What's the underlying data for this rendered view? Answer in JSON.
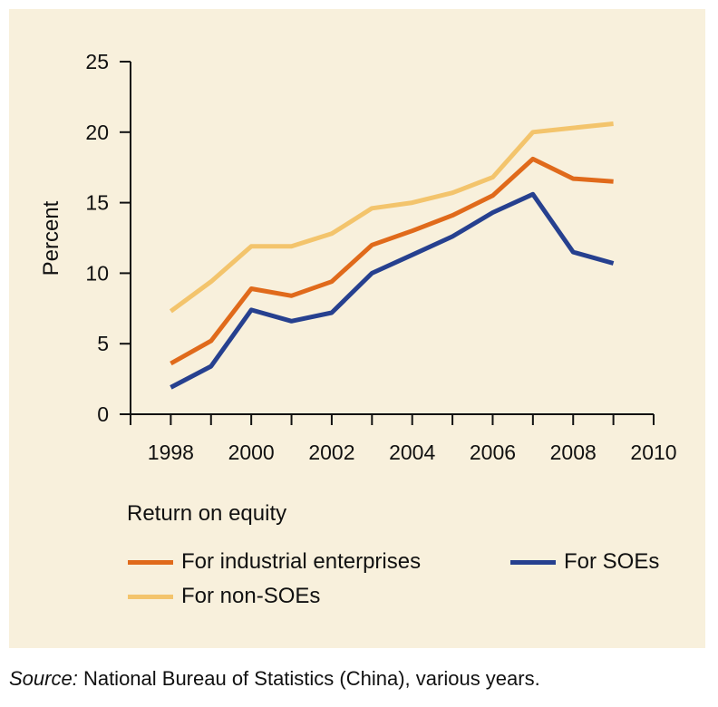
{
  "chart_data": {
    "type": "line",
    "title": "",
    "xlabel": "",
    "ylabel": "Percent",
    "xlim": [
      1997,
      2010
    ],
    "ylim": [
      0,
      25
    ],
    "x_ticks": [
      "1998",
      "2000",
      "2002",
      "2004",
      "2006",
      "2008",
      "2010"
    ],
    "y_ticks": [
      "0",
      "5",
      "10",
      "15",
      "20",
      "25"
    ],
    "grid": false,
    "legend_title": "Return on equity",
    "x": [
      1998,
      1999,
      2000,
      2001,
      2002,
      2003,
      2004,
      2005,
      2006,
      2007,
      2008,
      2009
    ],
    "series": [
      {
        "name": "For industrial enterprises",
        "color": "#e06a1b",
        "values": [
          3.6,
          5.2,
          8.9,
          8.4,
          9.4,
          12.0,
          13.0,
          14.1,
          15.5,
          18.1,
          16.7,
          16.5
        ]
      },
      {
        "name": "For SOEs",
        "color": "#26408f",
        "values": [
          1.9,
          3.4,
          7.4,
          6.6,
          7.2,
          10.0,
          11.3,
          12.6,
          14.3,
          15.6,
          11.5,
          10.7
        ]
      },
      {
        "name": "For non-SOEs",
        "color": "#f3c46c",
        "values": [
          7.3,
          9.4,
          11.9,
          11.9,
          12.8,
          14.6,
          15.0,
          15.7,
          16.8,
          20.0,
          20.3,
          20.6
        ]
      }
    ]
  },
  "source": {
    "label": "Source:",
    "text": " National Bureau of Statistics (China), various years."
  }
}
